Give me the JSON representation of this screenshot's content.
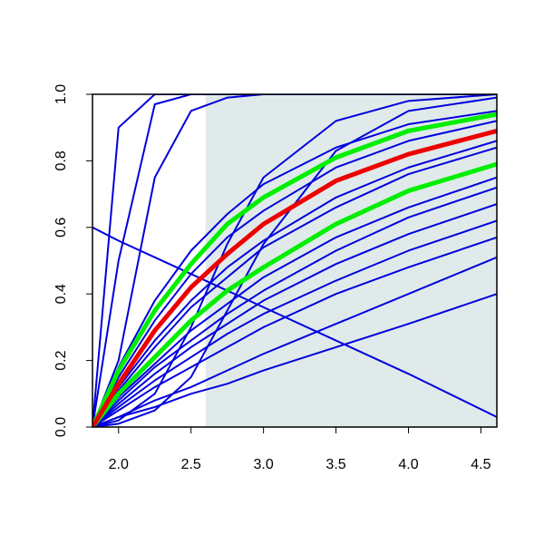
{
  "chart_data": {
    "type": "line",
    "x": [
      1.82,
      2.0,
      2.25,
      2.5,
      2.75,
      3.0,
      3.5,
      4.0,
      4.61
    ],
    "xlim": [
      1.82,
      4.61
    ],
    "ylim": [
      0,
      1
    ],
    "xticks": [
      {
        "value": 2,
        "label": "2.0"
      },
      2.5,
      {
        "value": 3,
        "label": "3.0"
      },
      3.5,
      {
        "value": 4,
        "label": "4.0"
      },
      4.5
    ],
    "yticks": [
      {
        "value": 0,
        "label": "0.0"
      },
      0.2,
      0.4,
      0.6,
      0.8,
      {
        "value": 1,
        "label": "1.0"
      }
    ],
    "shade": {
      "x": [
        2.6,
        4.61
      ],
      "y": [
        0,
        1
      ],
      "color": "#e0eaea"
    },
    "series": [
      {
        "color": "#0000dd",
        "values": [
          0,
          0.05,
          0.12,
          0.18,
          0.24,
          0.3,
          0.4,
          0.48,
          0.57
        ]
      },
      {
        "color": "#0000dd",
        "values": [
          0,
          0.06,
          0.14,
          0.21,
          0.28,
          0.34,
          0.44,
          0.53,
          0.62
        ]
      },
      {
        "color": "#0000dd",
        "values": [
          0,
          0.07,
          0.16,
          0.24,
          0.31,
          0.38,
          0.49,
          0.58,
          0.67
        ]
      },
      {
        "color": "#0000dd",
        "values": [
          0,
          0.08,
          0.18,
          0.26,
          0.34,
          0.41,
          0.53,
          0.63,
          0.72
        ]
      },
      {
        "color": "#0000dd",
        "values": [
          0,
          0.09,
          0.19,
          0.29,
          0.37,
          0.45,
          0.57,
          0.66,
          0.75
        ]
      },
      {
        "color": "#0000dd",
        "values": [
          0,
          0.11,
          0.24,
          0.36,
          0.45,
          0.54,
          0.66,
          0.76,
          0.84
        ]
      },
      {
        "color": "#0000dd",
        "values": [
          0,
          0.12,
          0.26,
          0.38,
          0.48,
          0.56,
          0.69,
          0.78,
          0.86
        ]
      },
      {
        "color": "#0000dd",
        "values": [
          0,
          0.15,
          0.32,
          0.46,
          0.57,
          0.65,
          0.78,
          0.86,
          0.92
        ]
      },
      {
        "color": "#0000dd",
        "values": [
          0,
          0.18,
          0.38,
          0.53,
          0.64,
          0.73,
          0.84,
          0.91,
          0.95
        ]
      },
      {
        "color": "#0000dd",
        "values": [
          0.6,
          0.56,
          0.51,
          0.46,
          0.41,
          0.36,
          0.26,
          0.16,
          0.03
        ]
      },
      {
        "color": "#0000dd",
        "values": [
          0,
          0.03,
          0.08,
          0.12,
          0.17,
          0.22,
          0.31,
          0.4,
          0.51
        ]
      },
      {
        "color": "#0000dd",
        "values": [
          0,
          0.03,
          0.06,
          0.1,
          0.13,
          0.17,
          0.24,
          0.31,
          0.4
        ]
      },
      {
        "color": "#0000dd",
        "values": [
          0,
          0.5,
          0.97,
          1,
          1,
          1,
          1,
          1,
          1
        ]
      },
      {
        "color": "#0000dd",
        "values": [
          0,
          0.9,
          1,
          1,
          1,
          1,
          1,
          1,
          1
        ]
      },
      {
        "color": "#0000dd",
        "values": [
          0,
          0.2,
          0.75,
          0.95,
          0.99,
          1,
          1,
          1,
          1
        ]
      },
      {
        "color": "#0000dd",
        "values": [
          0,
          0.02,
          0.1,
          0.3,
          0.55,
          0.75,
          0.92,
          0.98,
          1
        ]
      },
      {
        "color": "#0000dd",
        "values": [
          0,
          0.01,
          0.05,
          0.15,
          0.35,
          0.55,
          0.83,
          0.95,
          0.99
        ]
      },
      {
        "color": "#00ee00",
        "values": [
          0,
          0.17,
          0.35,
          0.49,
          0.61,
          0.69,
          0.81,
          0.89,
          0.94
        ]
      },
      {
        "color": "#00ee00",
        "values": [
          0,
          0.1,
          0.21,
          0.32,
          0.41,
          0.48,
          0.61,
          0.71,
          0.79
        ]
      },
      {
        "color": "#ee0000",
        "values": [
          0,
          0.13,
          0.29,
          0.42,
          0.52,
          0.61,
          0.74,
          0.82,
          0.89
        ]
      }
    ]
  }
}
